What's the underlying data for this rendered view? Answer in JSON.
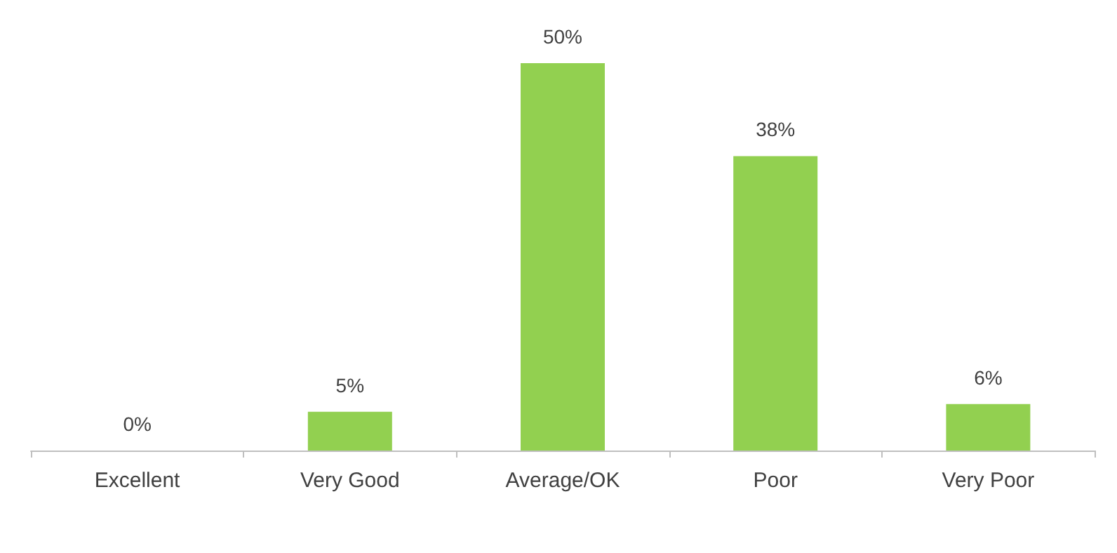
{
  "chart_data": {
    "type": "bar",
    "categories": [
      "Excellent",
      "Very Good",
      "Average/OK",
      "Poor",
      "Very Poor"
    ],
    "values": [
      0,
      5,
      50,
      38,
      6
    ],
    "value_labels": [
      "0%",
      "5%",
      "50%",
      "38%",
      "6%"
    ],
    "color": "#92d050"
  }
}
